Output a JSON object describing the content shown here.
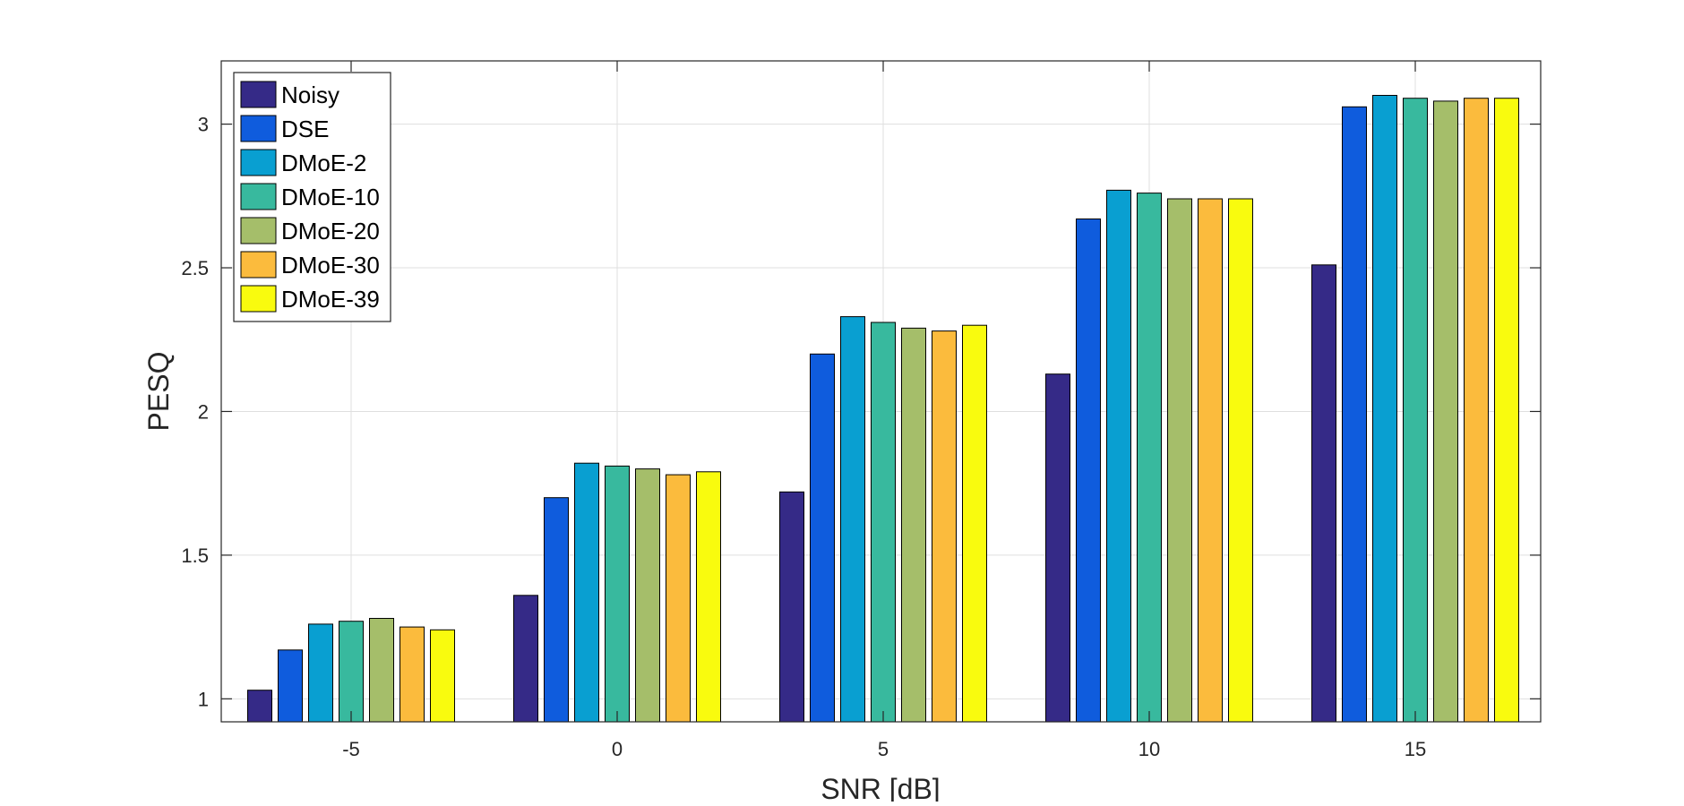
{
  "chart_data": {
    "type": "bar",
    "title": "",
    "xlabel": "SNR [dB]",
    "ylabel": "PESQ",
    "categories": [
      "-5",
      "0",
      "5",
      "10",
      "15"
    ],
    "ylim": [
      0.92,
      3.22
    ],
    "yticks": [
      "1",
      "1.5",
      "2",
      "2.5",
      "3"
    ],
    "grid": true,
    "legend_position": "top-left",
    "series": [
      {
        "name": "Noisy",
        "color": "#352a87",
        "values": [
          1.03,
          1.36,
          1.72,
          2.13,
          2.51
        ]
      },
      {
        "name": "DSE",
        "color": "#0f5cdd",
        "values": [
          1.17,
          1.7,
          2.2,
          2.67,
          3.06
        ]
      },
      {
        "name": "DMoE-2",
        "color": "#099fd1",
        "values": [
          1.26,
          1.82,
          2.33,
          2.77,
          3.1
        ]
      },
      {
        "name": "DMoE-10",
        "color": "#38b99e",
        "values": [
          1.27,
          1.81,
          2.31,
          2.76,
          3.09
        ]
      },
      {
        "name": "DMoE-20",
        "color": "#a5be6a",
        "values": [
          1.28,
          1.8,
          2.29,
          2.74,
          3.08
        ]
      },
      {
        "name": "DMoE-30",
        "color": "#fbbb3d",
        "values": [
          1.25,
          1.78,
          2.28,
          2.74,
          3.09
        ]
      },
      {
        "name": "DMoE-39",
        "color": "#f9fb0e",
        "values": [
          1.24,
          1.79,
          2.3,
          2.74,
          3.09
        ]
      }
    ]
  }
}
